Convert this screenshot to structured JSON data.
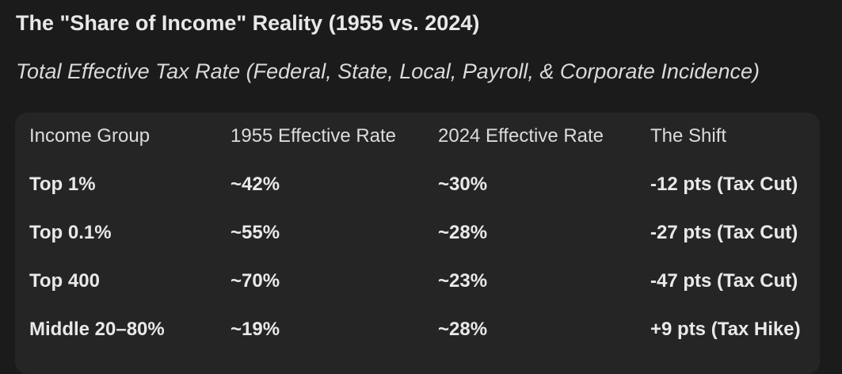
{
  "title": "The \"Share of Income\" Reality (1955 vs. 2024)",
  "subtitle": "Total Effective Tax Rate (Federal, State, Local, Payroll, & Corporate Incidence)",
  "table": {
    "headers": [
      "Income Group",
      "1955 Effective Rate",
      "2024 Effective Rate",
      "The Shift"
    ],
    "rows": [
      [
        "Top 1%",
        "~42%",
        "~30%",
        "-12 pts (Tax Cut)"
      ],
      [
        "Top 0.1%",
        "~55%",
        "~28%",
        "-27 pts (Tax Cut)"
      ],
      [
        "Top 400",
        "~70%",
        "~23%",
        "-47 pts (Tax Cut)"
      ],
      [
        "Middle 20–80%",
        "~19%",
        "~28%",
        "+9 pts (Tax Hike)"
      ]
    ]
  }
}
